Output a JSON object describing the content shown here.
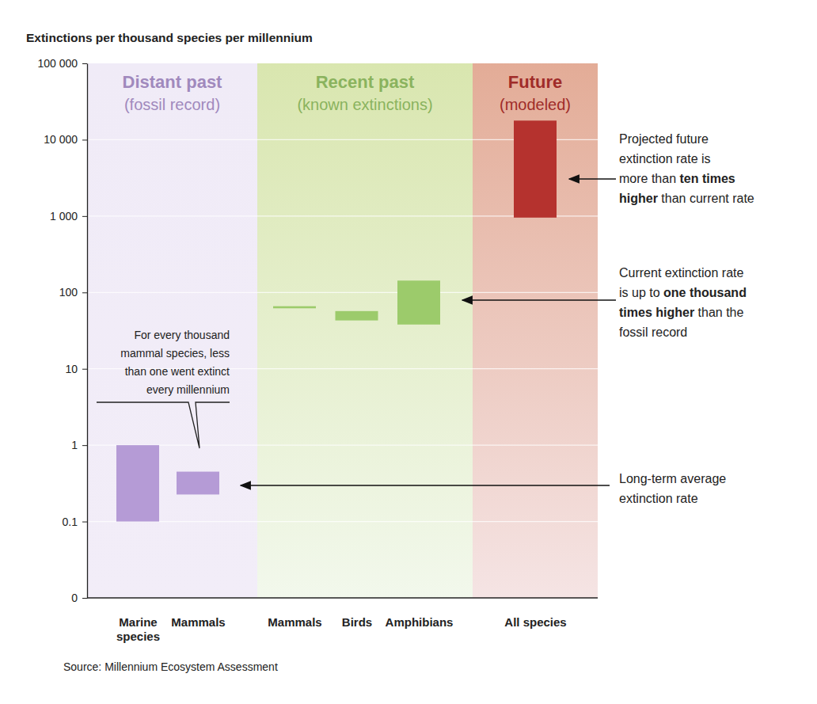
{
  "chart_data": {
    "type": "bar",
    "title": "Extinctions per thousand species per millennium",
    "source": "Source: Millennium Ecosystem Assessment",
    "log": "y",
    "grid": true,
    "ylim": [
      0.01,
      100000
    ],
    "yticks": [
      {
        "value": 0.01,
        "label": "0"
      },
      0.1,
      1,
      10,
      100,
      {
        "value": 1000,
        "label": "1 000"
      },
      {
        "value": 10000,
        "label": "10 000"
      },
      {
        "value": 100000,
        "label": "100 000"
      }
    ],
    "groups": [
      {
        "title": "Distant past",
        "subtitle": "(fossil record)",
        "color": "#b59bd6",
        "categories": [
          "Marine species",
          "Mammals"
        ],
        "values": [
          [
            0.1,
            1
          ],
          [
            0.226,
            0.45
          ]
        ]
      },
      {
        "title": "Recent past",
        "subtitle": "(known extinctions)",
        "color": "#9ccb6b",
        "categories": [
          "Mammals",
          "Birds",
          "Amphibians"
        ],
        "values": [
          [
            62,
            66
          ],
          [
            43,
            57
          ],
          [
            38,
            143
          ]
        ]
      },
      {
        "title": "Future",
        "subtitle": "(modeled)",
        "color": "#b5322e",
        "categories": [
          "All species"
        ],
        "values": [
          [
            955,
            17800
          ]
        ]
      }
    ],
    "annotations": [
      {
        "lines": [
          [
            "For every thousand"
          ],
          [
            "mammal species, less"
          ],
          [
            "than one went extinct"
          ],
          [
            "every millennium"
          ]
        ]
      },
      {
        "lines": [
          [
            "Projected future"
          ],
          [
            "extinction rate is"
          ],
          [
            "more than ",
            {
              "text": "ten times",
              "bold": true
            }
          ],
          [
            {
              "text": "higher",
              "bold": true
            },
            " than current rate"
          ]
        ]
      },
      {
        "lines": [
          [
            "Current extinction rate"
          ],
          [
            "is up to ",
            {
              "text": "one thousand",
              "bold": true
            }
          ],
          [
            {
              "text": "times higher",
              "bold": true
            },
            " than the"
          ],
          [
            "fossil record"
          ]
        ]
      },
      {
        "lines": [
          [
            "Long-term average"
          ],
          [
            "extinction rate"
          ]
        ]
      }
    ]
  }
}
